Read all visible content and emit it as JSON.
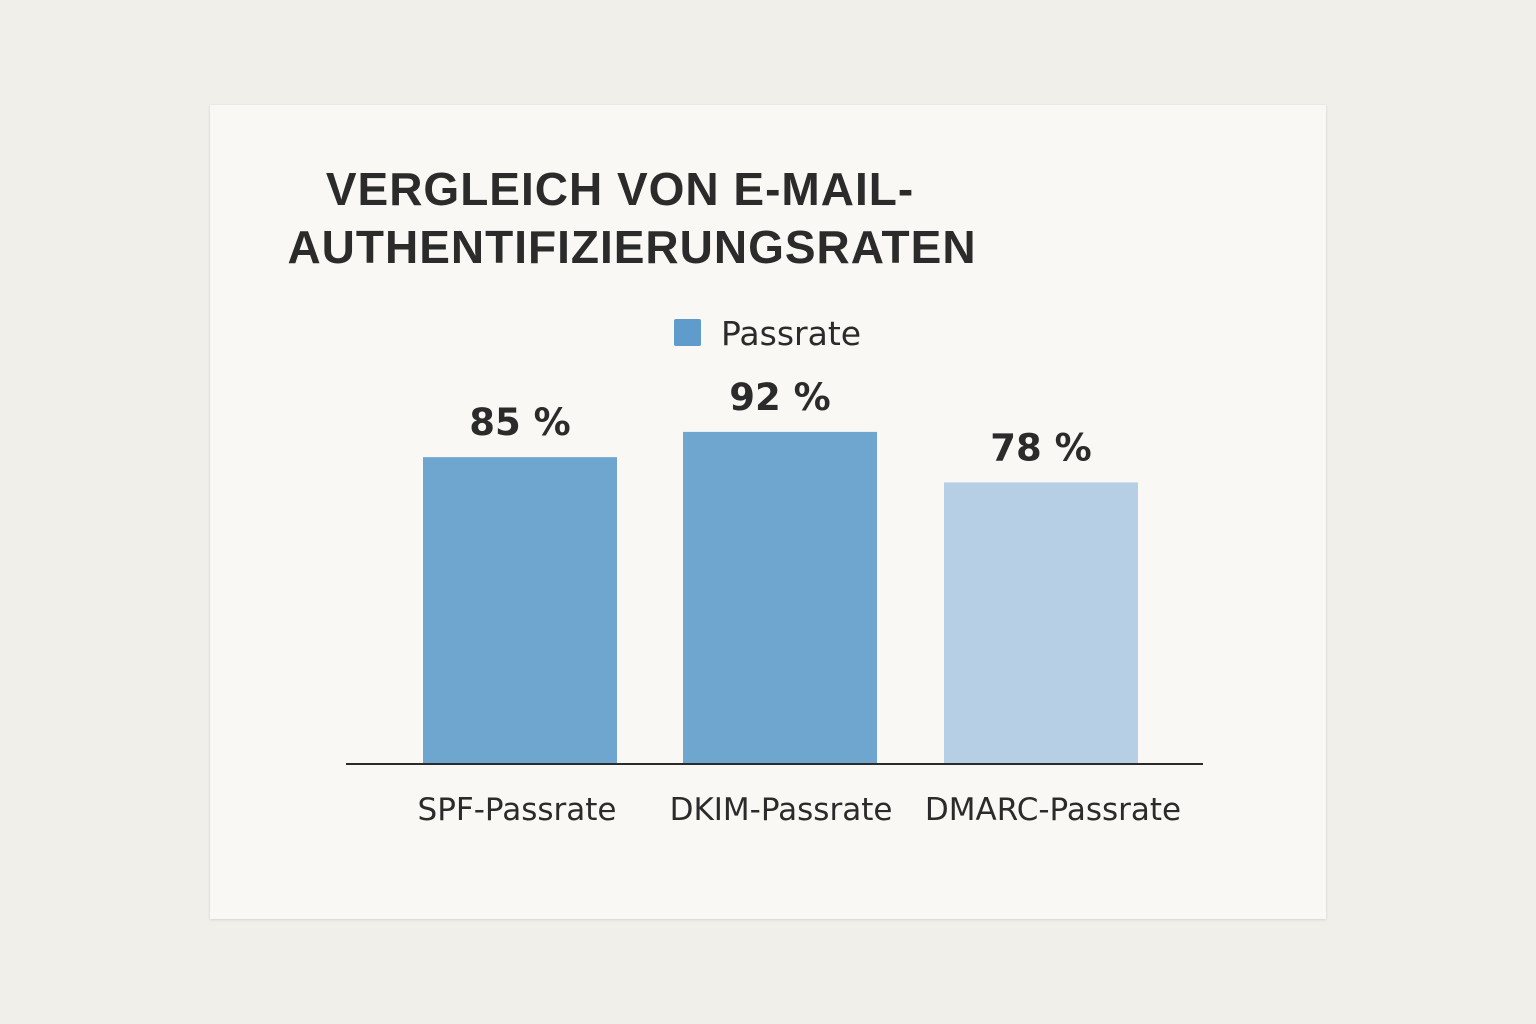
{
  "chart_data": {
    "type": "bar",
    "title_lines": [
      "VERGLEICH VON E-MAIL-",
      "AUTHENTIFIZIERUNGSRATEN"
    ],
    "legend": [
      {
        "name": "Passrate",
        "color": "#5f9bcb"
      }
    ],
    "categories": [
      "SPF-Passrate",
      "DKIM-Passrate",
      "DMARC-Passrate"
    ],
    "values": [
      85,
      92,
      78
    ],
    "value_labels": [
      "85 %",
      "92 %",
      "78 %"
    ],
    "bar_colors": [
      "#6fa6d0",
      "#6fa6d0",
      "#b6cfe5"
    ],
    "axis_color": "#2b2b2b",
    "grid": false,
    "legend_position": "top-center"
  }
}
